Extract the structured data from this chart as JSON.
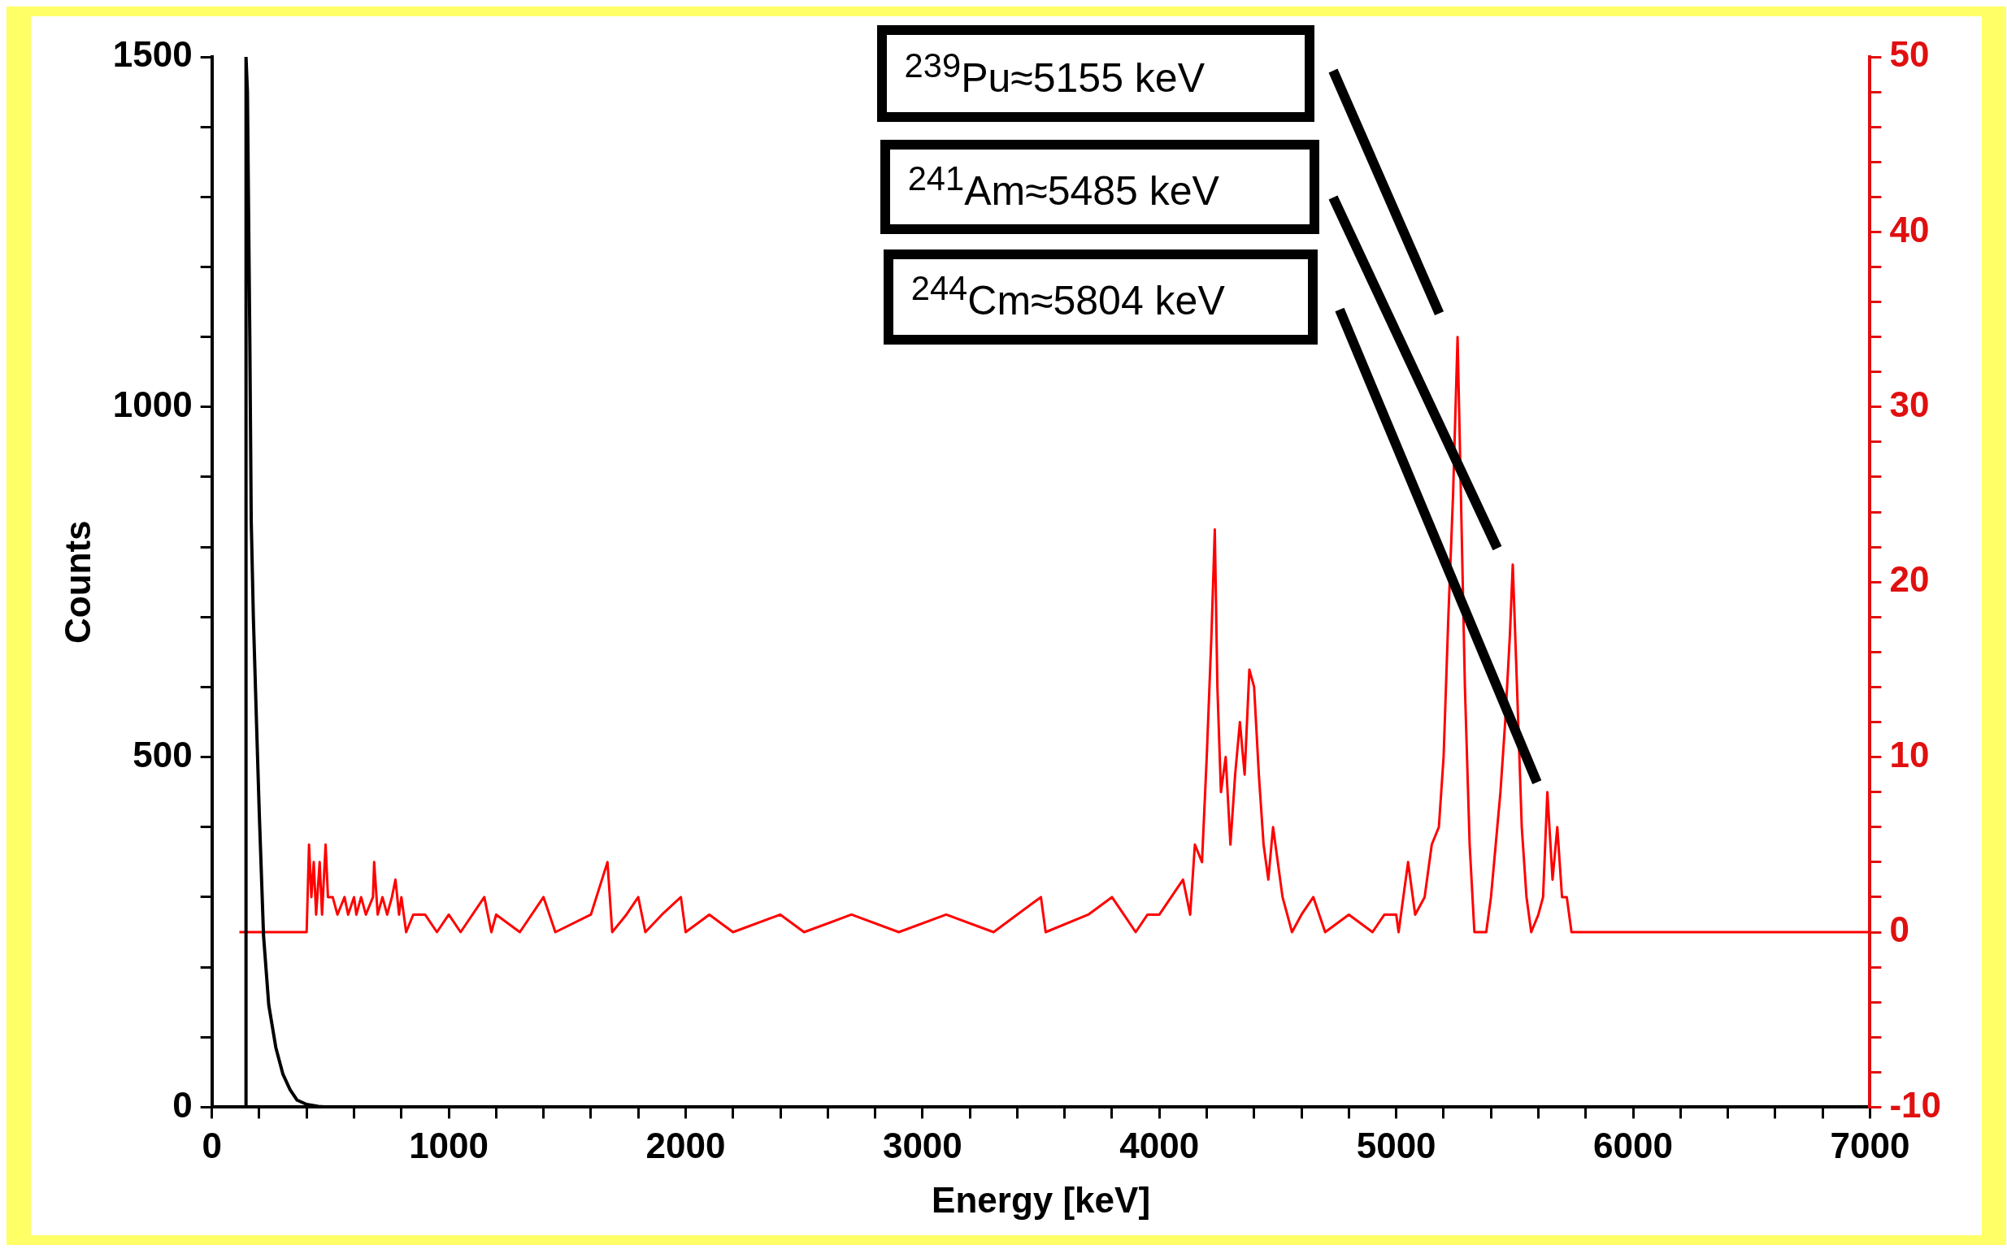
{
  "chart_data": {
    "type": "line",
    "xlabel": "Energy [keV]",
    "ylabel": "Counts",
    "xlim": [
      0,
      7000
    ],
    "xticks": [
      0,
      {
        "value": 200,
        "label": null
      },
      {
        "value": 400,
        "label": null
      },
      {
        "value": 600,
        "label": null
      },
      {
        "value": 800,
        "label": null
      },
      1000,
      {
        "value": 1200,
        "label": null
      },
      {
        "value": 1400,
        "label": null
      },
      {
        "value": 1600,
        "label": null
      },
      {
        "value": 1800,
        "label": null
      },
      2000,
      {
        "value": 2200,
        "label": null
      },
      {
        "value": 2400,
        "label": null
      },
      {
        "value": 2600,
        "label": null
      },
      {
        "value": 2800,
        "label": null
      },
      3000,
      {
        "value": 3200,
        "label": null
      },
      {
        "value": 3400,
        "label": null
      },
      {
        "value": 3600,
        "label": null
      },
      {
        "value": 3800,
        "label": null
      },
      4000,
      {
        "value": 4200,
        "label": null
      },
      {
        "value": 4400,
        "label": null
      },
      {
        "value": 4600,
        "label": null
      },
      {
        "value": 4800,
        "label": null
      },
      5000,
      {
        "value": 5200,
        "label": null
      },
      {
        "value": 5400,
        "label": null
      },
      {
        "value": 5600,
        "label": null
      },
      {
        "value": 5800,
        "label": null
      },
      6000,
      {
        "value": 6200,
        "label": null
      },
      {
        "value": 6400,
        "label": null
      },
      {
        "value": 6600,
        "label": null
      },
      {
        "value": 6800,
        "label": null
      },
      7000
    ],
    "ylim": [
      0,
      1500
    ],
    "yticks": [
      0,
      {
        "value": 100,
        "label": null
      },
      {
        "value": 200,
        "label": null
      },
      {
        "value": 300,
        "label": null
      },
      {
        "value": 400,
        "label": null
      },
      500,
      {
        "value": 600,
        "label": null
      },
      {
        "value": 700,
        "label": null
      },
      {
        "value": 800,
        "label": null
      },
      {
        "value": 900,
        "label": null
      },
      1000,
      {
        "value": 1100,
        "label": null
      },
      {
        "value": 1200,
        "label": null
      },
      {
        "value": 1300,
        "label": null
      },
      {
        "value": 1400,
        "label": null
      },
      1500
    ],
    "y2lim": [
      -10,
      50
    ],
    "y2ticks": [
      -10,
      {
        "value": -8,
        "label": null
      },
      {
        "value": -6,
        "label": null
      },
      {
        "value": -4,
        "label": null
      },
      {
        "value": -2,
        "label": null
      },
      0,
      {
        "value": 2,
        "label": null
      },
      {
        "value": 4,
        "label": null
      },
      {
        "value": 6,
        "label": null
      },
      {
        "value": 8,
        "label": null
      },
      10,
      {
        "value": 12,
        "label": null
      },
      {
        "value": 14,
        "label": null
      },
      {
        "value": 16,
        "label": null
      },
      {
        "value": 18,
        "label": null
      },
      20,
      {
        "value": 22,
        "label": null
      },
      {
        "value": 24,
        "label": null
      },
      {
        "value": 26,
        "label": null
      },
      {
        "value": 28,
        "label": null
      },
      30,
      {
        "value": 32,
        "label": null
      },
      {
        "value": 34,
        "label": null
      },
      {
        "value": 36,
        "label": null
      },
      {
        "value": 38,
        "label": null
      },
      40,
      {
        "value": 42,
        "label": null
      },
      {
        "value": 44,
        "label": null
      },
      {
        "value": 46,
        "label": null
      },
      {
        "value": 48,
        "label": null
      },
      50
    ],
    "grid": false,
    "legend": false,
    "series": [
      {
        "color": "#000000",
        "x": [
          144,
          144,
          150,
          160,
          166,
          175,
          189,
          200,
          218,
          240,
          270,
          300,
          330,
          360,
          400,
          450,
          500
        ],
        "values": [
          0,
          1500,
          1450,
          1100,
          838,
          700,
          541,
          420,
          245,
          146,
          85,
          47,
          25,
          10,
          4,
          1,
          0
        ]
      },
      {
        "color": "#ff0000",
        "axis": "y2",
        "x": [
          116,
          400,
          410,
          420,
          430,
          440,
          455,
          465,
          480,
          490,
          510,
          530,
          560,
          575,
          600,
          610,
          630,
          650,
          680,
          685,
          700,
          720,
          740,
          760,
          775,
          790,
          800,
          820,
          850,
          900,
          950,
          1000,
          1050,
          1150,
          1180,
          1200,
          1300,
          1400,
          1450,
          1600,
          1670,
          1690,
          1750,
          1800,
          1830,
          1900,
          1980,
          2000,
          2100,
          2200,
          2400,
          2500,
          2700,
          2900,
          3100,
          3300,
          3500,
          3520,
          3700,
          3800,
          3850,
          3900,
          3950,
          4000,
          4050,
          4100,
          4130,
          4150,
          4180,
          4200,
          4220,
          4234,
          4245,
          4260,
          4280,
          4300,
          4320,
          4340,
          4360,
          4380,
          4400,
          4420,
          4440,
          4460,
          4480,
          4500,
          4520,
          4540,
          4560,
          4600,
          4650,
          4700,
          4800,
          4900,
          4950,
          5000,
          5010,
          5050,
          5080,
          5120,
          5150,
          5180,
          5200,
          5220,
          5240,
          5259,
          5270,
          5290,
          5310,
          5330,
          5380,
          5400,
          5420,
          5440,
          5460,
          5480,
          5492,
          5510,
          5530,
          5550,
          5570,
          5600,
          5620,
          5638,
          5660,
          5680,
          5700,
          5720,
          5740,
          7000
        ],
        "values": [
          0,
          0,
          5,
          2,
          4,
          1,
          4,
          1,
          5,
          2,
          2,
          1,
          2,
          1,
          2,
          1,
          2,
          1,
          2,
          4,
          1,
          2,
          1,
          2,
          3,
          1,
          2,
          0,
          1,
          1,
          0,
          1,
          0,
          2,
          0,
          1,
          0,
          2,
          0,
          1,
          4,
          0,
          1,
          2,
          0,
          1,
          2,
          0,
          1,
          0,
          1,
          0,
          1,
          0,
          1,
          0,
          2,
          0,
          1,
          2,
          1,
          0,
          1,
          1,
          2,
          3,
          1,
          5,
          4,
          10,
          17,
          23,
          14,
          8,
          10,
          5,
          9,
          12,
          9,
          15,
          14,
          9,
          5,
          3,
          6,
          4,
          2,
          1,
          0,
          1,
          2,
          0,
          1,
          0,
          1,
          1,
          0,
          4,
          1,
          2,
          5,
          6,
          10,
          18,
          25,
          34,
          27,
          14,
          5,
          0,
          0,
          2,
          5,
          8,
          12,
          17,
          21,
          14,
          6,
          2,
          0,
          1,
          2,
          8,
          3,
          6,
          2,
          2,
          0,
          0
        ]
      }
    ],
    "annotations": [
      "$^{239}$Pu≈5155 keV",
      "$^{241}$Am≈5485 keV",
      "$^{244}$Cm≈5804 keV"
    ]
  }
}
